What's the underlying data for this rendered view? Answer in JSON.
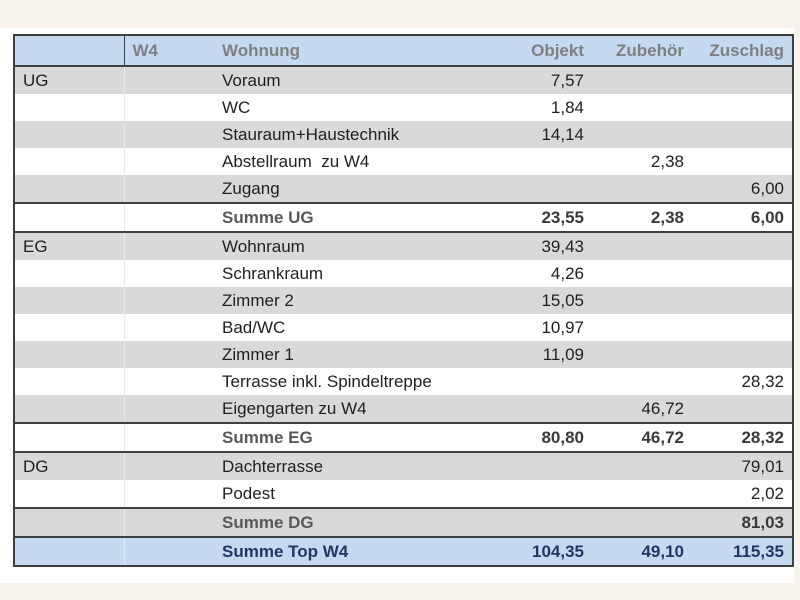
{
  "colors": {
    "page_band": "#f8f3ec",
    "header_bg": "#c5d9f1",
    "header_text": "#7f7f7f",
    "stripe_gray": "#d9d9d9",
    "sum_label_text": "#595959",
    "total_row_bg": "#c5d9f1",
    "total_text": "#1f3864",
    "border": "#3f3f3f"
  },
  "table": {
    "header": [
      "",
      "W4",
      "Wohnung",
      "Objekt",
      "Zubehör",
      "Zuschlag"
    ],
    "rows": [
      {
        "level": "UG",
        "name": "Voraum",
        "objekt": "7,57",
        "zubehoer": "",
        "zuschlag": "",
        "type": "data",
        "shade": "gray"
      },
      {
        "level": "",
        "name": "WC",
        "objekt": "1,84",
        "zubehoer": "",
        "zuschlag": "",
        "type": "data",
        "shade": "white"
      },
      {
        "level": "",
        "name": "Stauraum+Haustechnik",
        "objekt": "14,14",
        "zubehoer": "",
        "zuschlag": "",
        "type": "data",
        "shade": "gray"
      },
      {
        "level": "",
        "name": "Abstellraum  zu W4",
        "objekt": "",
        "zubehoer": "2,38",
        "zuschlag": "",
        "type": "data",
        "shade": "white"
      },
      {
        "level": "",
        "name": "Zugang",
        "objekt": "",
        "zubehoer": "",
        "zuschlag": "6,00",
        "type": "data",
        "shade": "gray"
      },
      {
        "level": "",
        "name": "Summe UG",
        "objekt": "23,55",
        "zubehoer": "2,38",
        "zuschlag": "6,00",
        "type": "sum",
        "shade": "white"
      },
      {
        "level": "EG",
        "name": "Wohnraum",
        "objekt": "39,43",
        "zubehoer": "",
        "zuschlag": "",
        "type": "data",
        "shade": "gray"
      },
      {
        "level": "",
        "name": "Schrankraum",
        "objekt": "4,26",
        "zubehoer": "",
        "zuschlag": "",
        "type": "data",
        "shade": "white"
      },
      {
        "level": "",
        "name": "Zimmer 2",
        "objekt": "15,05",
        "zubehoer": "",
        "zuschlag": "",
        "type": "data",
        "shade": "gray"
      },
      {
        "level": "",
        "name": "Bad/WC",
        "objekt": "10,97",
        "zubehoer": "",
        "zuschlag": "",
        "type": "data",
        "shade": "white"
      },
      {
        "level": "",
        "name": "Zimmer 1",
        "objekt": "11,09",
        "zubehoer": "",
        "zuschlag": "",
        "type": "data",
        "shade": "gray"
      },
      {
        "level": "",
        "name": "Terrasse inkl. Spindeltreppe",
        "objekt": "",
        "zubehoer": "",
        "zuschlag": "28,32",
        "type": "data",
        "shade": "white"
      },
      {
        "level": "",
        "name": "Eigengarten zu W4",
        "objekt": "",
        "zubehoer": "46,72",
        "zuschlag": "",
        "type": "data",
        "shade": "gray"
      },
      {
        "level": "",
        "name": "Summe EG",
        "objekt": "80,80",
        "zubehoer": "46,72",
        "zuschlag": "28,32",
        "type": "sum",
        "shade": "white"
      },
      {
        "level": "DG",
        "name": "Dachterrasse",
        "objekt": "",
        "zubehoer": "",
        "zuschlag": "79,01",
        "type": "data",
        "shade": "gray"
      },
      {
        "level": "",
        "name": "Podest",
        "objekt": "",
        "zubehoer": "",
        "zuschlag": "2,02",
        "type": "data",
        "shade": "white"
      },
      {
        "level": "",
        "name": "Summe DG",
        "objekt": "",
        "zubehoer": "",
        "zuschlag": "81,03",
        "type": "sum",
        "shade": "gray"
      },
      {
        "level": "",
        "name": "Summe Top W4",
        "objekt": "104,35",
        "zubehoer": "49,10",
        "zuschlag": "115,35",
        "type": "total",
        "shade": "blue"
      }
    ]
  }
}
